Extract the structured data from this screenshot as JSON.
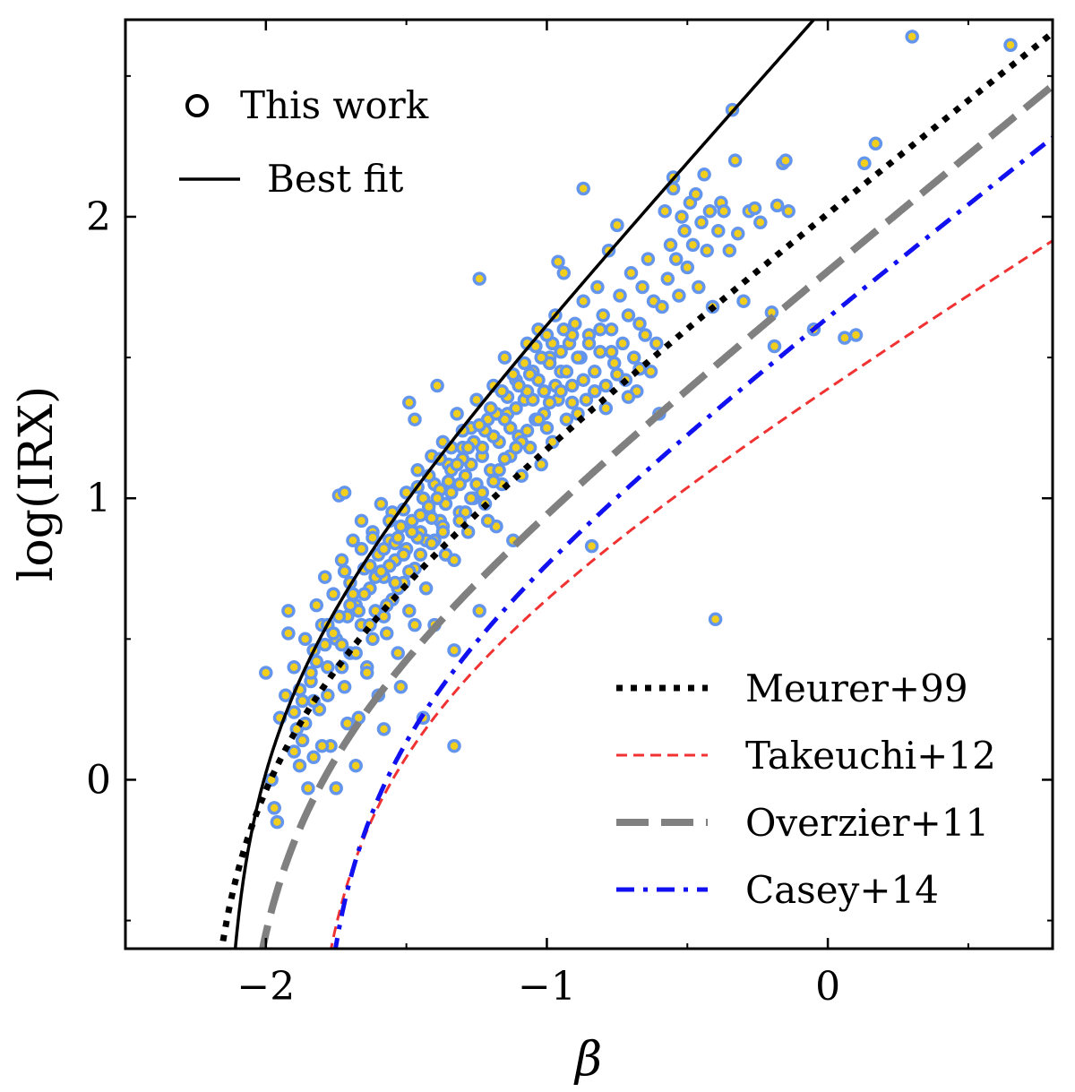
{
  "chart_data": {
    "type": "scatter",
    "title": "",
    "xlabel": "β",
    "ylabel": "log(IRX)",
    "xlim": [
      -2.5,
      0.8
    ],
    "ylim": [
      -0.6,
      2.7
    ],
    "grid": false,
    "x_ticks": [
      {
        "value": -2,
        "label": "−2"
      },
      {
        "value": -1,
        "label": "−1"
      },
      {
        "value": 0,
        "label": "0"
      }
    ],
    "y_ticks": [
      {
        "value": 0,
        "label": "0"
      },
      {
        "value": 1,
        "label": "1"
      },
      {
        "value": 2,
        "label": "2"
      }
    ],
    "scatter": {
      "name": "This work",
      "edge_color": "#6495ed",
      "fill_color": "#f2cf1d",
      "points": [
        [
          -2.0,
          0.38
        ],
        [
          -1.98,
          0.0
        ],
        [
          -1.97,
          -0.1
        ],
        [
          -1.96,
          -0.15
        ],
        [
          -1.95,
          0.22
        ],
        [
          -1.93,
          0.3
        ],
        [
          -1.92,
          0.6
        ],
        [
          -1.92,
          0.52
        ],
        [
          -1.9,
          0.4
        ],
        [
          -1.89,
          0.18
        ],
        [
          -1.88,
          0.05
        ],
        [
          -1.87,
          0.28
        ],
        [
          -1.86,
          0.5
        ],
        [
          -1.85,
          -0.03
        ],
        [
          -1.84,
          0.35
        ],
        [
          -1.83,
          0.46
        ],
        [
          -1.82,
          0.62
        ],
        [
          -1.81,
          0.25
        ],
        [
          -1.8,
          0.55
        ],
        [
          -1.79,
          0.72
        ],
        [
          -1.78,
          0.4
        ],
        [
          -1.77,
          0.12
        ],
        [
          -1.76,
          0.66
        ],
        [
          -1.75,
          0.5
        ],
        [
          -1.74,
          1.01
        ],
        [
          -1.73,
          0.78
        ],
        [
          -1.72,
          0.33
        ],
        [
          -1.72,
          1.02
        ],
        [
          -1.71,
          0.58
        ],
        [
          -1.7,
          0.45
        ],
        [
          -1.7,
          0.7
        ],
        [
          -1.69,
          0.85
        ],
        [
          -1.68,
          0.62
        ],
        [
          -1.67,
          0.22
        ],
        [
          -1.66,
          0.92
        ],
        [
          -1.66,
          0.55
        ],
        [
          -1.65,
          0.75
        ],
        [
          -1.64,
          0.4
        ],
        [
          -1.63,
          0.68
        ],
        [
          -1.62,
          0.88
        ],
        [
          -1.61,
          0.6
        ],
        [
          -1.6,
          0.8
        ],
        [
          -1.6,
          0.3
        ],
        [
          -1.59,
          0.98
        ],
        [
          -1.58,
          0.72
        ],
        [
          -1.57,
          0.52
        ],
        [
          -1.56,
          0.85
        ],
        [
          -1.55,
          0.64
        ],
        [
          -1.55,
          0.95
        ],
        [
          -1.54,
          0.78
        ],
        [
          -1.53,
          0.45
        ],
        [
          -1.52,
          0.9
        ],
        [
          -1.51,
          0.7
        ],
        [
          -1.5,
          1.02
        ],
        [
          -1.5,
          0.82
        ],
        [
          -1.49,
          1.34
        ],
        [
          -1.49,
          0.6
        ],
        [
          -1.48,
          0.92
        ],
        [
          -1.47,
          1.28
        ],
        [
          -1.47,
          0.75
        ],
        [
          -1.46,
          1.1
        ],
        [
          -1.45,
          0.88
        ],
        [
          -1.44,
          1.0
        ],
        [
          -1.43,
          0.68
        ],
        [
          -1.42,
          0.95
        ],
        [
          -1.41,
          1.15
        ],
        [
          -1.4,
          0.85
        ],
        [
          -1.4,
          1.05
        ],
        [
          -1.39,
          1.4
        ],
        [
          -1.38,
          0.92
        ],
        [
          -1.37,
          1.2
        ],
        [
          -1.36,
          0.8
        ],
        [
          -1.35,
          1.12
        ],
        [
          -1.34,
          1.02
        ],
        [
          -1.33,
          0.46
        ],
        [
          -1.33,
          0.12
        ],
        [
          -1.32,
          1.3
        ],
        [
          -1.31,
          0.95
        ],
        [
          -1.3,
          1.18
        ],
        [
          -1.29,
          1.08
        ],
        [
          -1.28,
          0.88
        ],
        [
          -1.27,
          1.25
        ],
        [
          -1.26,
          1.0
        ],
        [
          -1.25,
          1.35
        ],
        [
          -1.24,
          1.78
        ],
        [
          -1.24,
          0.6
        ],
        [
          -1.23,
          1.15
        ],
        [
          -1.22,
          0.98
        ],
        [
          -1.21,
          1.28
        ],
        [
          -1.2,
          1.1
        ],
        [
          -1.19,
          1.4
        ],
        [
          -1.18,
          0.9
        ],
        [
          -1.17,
          1.2
        ],
        [
          -1.16,
          1.05
        ],
        [
          -1.15,
          1.5
        ],
        [
          -1.14,
          1.3
        ],
        [
          -1.13,
          1.15
        ],
        [
          -1.12,
          0.85
        ],
        [
          -1.11,
          1.42
        ],
        [
          -1.1,
          1.22
        ],
        [
          -1.09,
          1.08
        ],
        [
          -1.08,
          1.35
        ],
        [
          -1.07,
          1.55
        ],
        [
          -1.06,
          1.18
        ],
        [
          -1.05,
          1.45
        ],
        [
          -1.04,
          1.28
        ],
        [
          -1.03,
          1.6
        ],
        [
          -1.02,
          1.12
        ],
        [
          -1.01,
          1.38
        ],
        [
          -1.0,
          1.25
        ],
        [
          -0.99,
          1.5
        ],
        [
          -0.98,
          1.2
        ],
        [
          -0.97,
          1.65
        ],
        [
          -0.96,
          1.84
        ],
        [
          -0.96,
          1.35
        ],
        [
          -0.95,
          1.45
        ],
        [
          -0.94,
          1.8
        ],
        [
          -0.93,
          1.28
        ],
        [
          -0.92,
          1.55
        ],
        [
          -0.91,
          1.4
        ],
        [
          -0.9,
          1.62
        ],
        [
          -0.89,
          1.3
        ],
        [
          -0.88,
          1.5
        ],
        [
          -0.87,
          2.1
        ],
        [
          -0.87,
          1.7
        ],
        [
          -0.86,
          1.35
        ],
        [
          -0.85,
          1.58
        ],
        [
          -0.84,
          0.83
        ],
        [
          -0.83,
          1.45
        ],
        [
          -0.82,
          1.75
        ],
        [
          -0.81,
          1.52
        ],
        [
          -0.8,
          1.65
        ],
        [
          -0.79,
          1.4
        ],
        [
          -0.78,
          1.88
        ],
        [
          -0.77,
          1.6
        ],
        [
          -0.76,
          1.48
        ],
        [
          -0.75,
          1.97
        ],
        [
          -0.74,
          1.72
        ],
        [
          -0.73,
          1.55
        ],
        [
          -0.72,
          1.42
        ],
        [
          -0.71,
          1.65
        ],
        [
          -0.7,
          1.8
        ],
        [
          -0.69,
          1.5
        ],
        [
          -0.68,
          1.38
        ],
        [
          -0.67,
          1.62
        ],
        [
          -0.66,
          1.75
        ],
        [
          -0.65,
          1.58
        ],
        [
          -0.64,
          1.85
        ],
        [
          -0.63,
          1.45
        ],
        [
          -0.62,
          1.7
        ],
        [
          -0.61,
          1.55
        ],
        [
          -0.6,
          1.3
        ],
        [
          -0.59,
          1.68
        ],
        [
          -0.58,
          2.02
        ],
        [
          -0.57,
          1.78
        ],
        [
          -0.56,
          1.9
        ],
        [
          -0.55,
          2.1
        ],
        [
          -0.55,
          2.14
        ],
        [
          -0.54,
          1.85
        ],
        [
          -0.53,
          1.72
        ],
        [
          -0.52,
          2.0
        ],
        [
          -0.51,
          1.95
        ],
        [
          -0.5,
          1.82
        ],
        [
          -0.49,
          2.05
        ],
        [
          -0.48,
          1.9
        ],
        [
          -0.47,
          2.08
        ],
        [
          -0.46,
          1.75
        ],
        [
          -0.45,
          1.98
        ],
        [
          -0.44,
          2.15
        ],
        [
          -0.43,
          1.88
        ],
        [
          -0.42,
          2.02
        ],
        [
          -0.41,
          1.68
        ],
        [
          -0.4,
          0.57
        ],
        [
          -0.39,
          1.95
        ],
        [
          -0.38,
          2.05
        ],
        [
          -0.37,
          2.02
        ],
        [
          -0.35,
          1.88
        ],
        [
          -0.34,
          2.38
        ],
        [
          -0.33,
          2.2
        ],
        [
          -0.32,
          1.94
        ],
        [
          -0.3,
          1.7
        ],
        [
          -0.28,
          2.02
        ],
        [
          -0.26,
          2.03
        ],
        [
          -0.24,
          1.98
        ],
        [
          -0.2,
          1.66
        ],
        [
          -0.19,
          1.54
        ],
        [
          -0.18,
          2.04
        ],
        [
          -0.16,
          2.19
        ],
        [
          -0.15,
          2.2
        ],
        [
          -0.14,
          2.02
        ],
        [
          -0.05,
          1.6
        ],
        [
          0.06,
          1.57
        ],
        [
          0.1,
          1.58
        ],
        [
          0.13,
          2.19
        ],
        [
          0.17,
          2.26
        ],
        [
          0.3,
          2.64
        ],
        [
          0.65,
          2.61
        ],
        [
          -1.52,
          0.33
        ],
        [
          -1.44,
          0.22
        ],
        [
          -1.4,
          0.55
        ],
        [
          -1.58,
          0.18
        ],
        [
          -1.62,
          0.5
        ],
        [
          -1.68,
          0.05
        ],
        [
          -1.75,
          -0.03
        ],
        [
          -1.8,
          0.12
        ],
        [
          -1.86,
          0.2
        ],
        [
          -1.9,
          0.1
        ],
        [
          -1.83,
          0.28
        ],
        [
          -1.71,
          0.2
        ],
        [
          -1.64,
          0.38
        ],
        [
          -1.57,
          0.62
        ],
        [
          -1.53,
          0.68
        ],
        [
          -1.47,
          0.55
        ],
        [
          -1.43,
          0.85
        ],
        [
          -1.37,
          0.9
        ],
        [
          -1.33,
          0.78
        ],
        [
          -1.29,
          0.95
        ],
        [
          -1.25,
          1.05
        ],
        [
          -1.21,
          0.92
        ],
        [
          -1.17,
          1.1
        ],
        [
          -1.13,
          1.25
        ],
        [
          -1.09,
          1.2
        ],
        [
          -1.05,
          1.35
        ],
        [
          -1.01,
          1.3
        ],
        [
          -0.97,
          1.4
        ],
        [
          -0.93,
          1.45
        ],
        [
          -0.89,
          1.5
        ],
        [
          -0.85,
          1.55
        ],
        [
          -0.81,
          1.6
        ],
        [
          -0.77,
          1.52
        ],
        [
          -1.78,
          0.55
        ],
        [
          -1.73,
          0.48
        ],
        [
          -1.67,
          0.6
        ],
        [
          -1.61,
          0.72
        ],
        [
          -1.56,
          0.76
        ],
        [
          -1.51,
          0.8
        ],
        [
          -1.46,
          0.86
        ],
        [
          -1.41,
          0.93
        ],
        [
          -1.36,
          0.98
        ],
        [
          -1.31,
          1.05
        ],
        [
          -1.27,
          1.12
        ],
        [
          -1.23,
          1.18
        ],
        [
          -1.19,
          1.22
        ],
        [
          -1.15,
          1.28
        ],
        [
          -1.11,
          1.32
        ],
        [
          -1.07,
          1.38
        ],
        [
          -1.03,
          1.42
        ],
        [
          -0.99,
          1.48
        ],
        [
          -0.95,
          1.52
        ],
        [
          -0.91,
          1.58
        ],
        [
          -1.82,
          0.42
        ],
        [
          -1.76,
          0.52
        ],
        [
          -1.7,
          0.62
        ],
        [
          -1.65,
          0.66
        ],
        [
          -1.59,
          0.74
        ],
        [
          -1.54,
          0.84
        ],
        [
          -1.48,
          0.88
        ],
        [
          -1.42,
          0.97
        ],
        [
          -1.38,
          1.03
        ],
        [
          -1.34,
          1.1
        ],
        [
          -1.3,
          1.14
        ],
        [
          -1.26,
          1.2
        ],
        [
          -1.22,
          1.24
        ],
        [
          -1.18,
          1.3
        ],
        [
          -1.14,
          1.36
        ],
        [
          -1.1,
          1.4
        ],
        [
          -1.06,
          1.44
        ],
        [
          -1.02,
          1.5
        ],
        [
          -0.98,
          1.55
        ],
        [
          -0.94,
          1.6
        ],
        [
          -1.88,
          0.32
        ],
        [
          -1.84,
          0.38
        ],
        [
          -1.79,
          0.48
        ],
        [
          -1.74,
          0.58
        ],
        [
          -1.69,
          0.66
        ],
        [
          -1.63,
          0.76
        ],
        [
          -1.58,
          0.82
        ],
        [
          -1.53,
          0.86
        ],
        [
          -1.45,
          0.94
        ],
        [
          -1.39,
          1.0
        ],
        [
          -1.35,
          1.06
        ],
        [
          -1.32,
          1.12
        ],
        [
          -1.28,
          1.18
        ],
        [
          -1.24,
          1.26
        ],
        [
          -1.2,
          1.32
        ],
        [
          -1.16,
          1.38
        ],
        [
          -1.12,
          1.44
        ],
        [
          -1.08,
          1.48
        ],
        [
          -1.04,
          1.54
        ],
        [
          -1.0,
          1.58
        ],
        [
          -1.72,
          0.74
        ],
        [
          -1.66,
          0.82
        ],
        [
          -1.62,
          0.86
        ],
        [
          -1.56,
          0.92
        ],
        [
          -1.51,
          0.96
        ],
        [
          -1.46,
          1.04
        ],
        [
          -1.42,
          1.08
        ],
        [
          -1.38,
          1.14
        ],
        [
          -1.34,
          1.18
        ],
        [
          -1.3,
          1.24
        ],
        [
          -1.9,
          0.24
        ],
        [
          -1.87,
          0.14
        ],
        [
          -1.83,
          0.08
        ],
        [
          -1.78,
          0.3
        ],
        [
          -1.73,
          0.4
        ],
        [
          -1.68,
          0.45
        ],
        [
          -1.63,
          0.55
        ],
        [
          -1.58,
          0.58
        ],
        [
          -1.54,
          0.7
        ],
        [
          -1.49,
          0.74
        ],
        [
          -1.45,
          0.8
        ],
        [
          -1.41,
          0.84
        ],
        [
          -1.37,
          0.88
        ],
        [
          -1.31,
          0.92
        ],
        [
          -1.27,
          1.0
        ],
        [
          -1.23,
          1.02
        ],
        [
          -1.19,
          1.06
        ],
        [
          -1.15,
          1.14
        ],
        [
          -1.11,
          1.18
        ],
        [
          -1.07,
          1.24
        ],
        [
          -1.03,
          1.28
        ],
        [
          -0.99,
          1.34
        ],
        [
          -0.95,
          1.38
        ],
        [
          -0.91,
          1.34
        ],
        [
          -0.87,
          1.42
        ],
        [
          -0.83,
          1.38
        ],
        [
          -0.79,
          1.32
        ],
        [
          -0.75,
          1.44
        ],
        [
          -0.71,
          1.36
        ],
        [
          -0.67,
          1.46
        ]
      ]
    },
    "lines": [
      {
        "name": "Best fit",
        "style": "solid",
        "color": "#000000",
        "width": 3.5
      },
      {
        "name": "Meurer+99",
        "style": "dotted",
        "color": "#000000",
        "width": 7
      },
      {
        "name": "Takeuchi+12",
        "style": "dashed",
        "color": "#f03232",
        "width": 3
      },
      {
        "name": "Overzier+11",
        "style": "longdash",
        "color": "#808080",
        "width": 8
      },
      {
        "name": "Casey+14",
        "style": "dashdot",
        "color": "#1010f0",
        "width": 5
      }
    ],
    "legend_top_left": [
      "This work",
      "Best fit"
    ],
    "legend_bottom_right": [
      "Meurer+99",
      "Takeuchi+12",
      "Overzier+11",
      "Casey+14"
    ]
  }
}
